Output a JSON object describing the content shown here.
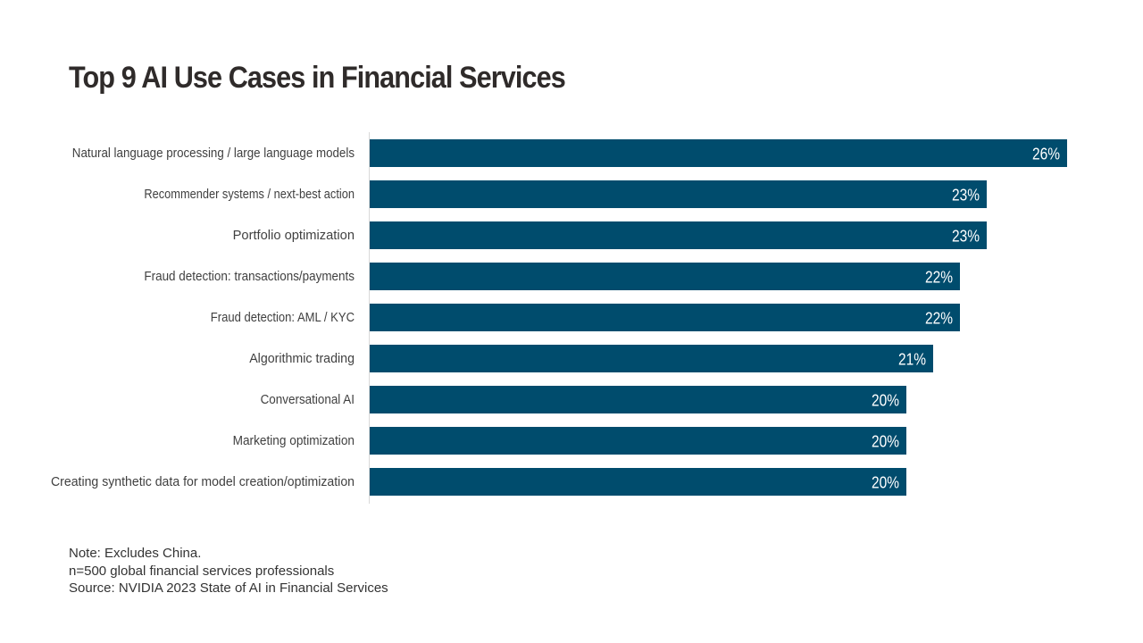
{
  "chart_data": {
    "type": "bar",
    "orientation": "horizontal",
    "title": "Top 9 AI Use Cases in Financial Services",
    "categories": [
      "Natural language processing / large language models",
      "Recommender systems / next-best action",
      "Portfolio optimization",
      "Fraud detection: transactions/payments",
      "Fraud detection: AML / KYC",
      "Algorithmic trading",
      "Conversational AI",
      "Marketing optimization",
      "Creating synthetic data for model creation/optimization"
    ],
    "values": [
      26,
      23,
      23,
      22,
      22,
      21,
      20,
      20,
      20
    ],
    "data_labels": [
      "26%",
      "23%",
      "23%",
      "22%",
      "22%",
      "21%",
      "20%",
      "20%",
      "20%"
    ],
    "unit": "%",
    "xlim": [
      0,
      26
    ],
    "xlabel": "",
    "ylabel": "",
    "grid": false,
    "legend": "none",
    "bar_color": "#004c6d"
  },
  "notes": {
    "note": "Note: Excludes China.",
    "sample": "n=500 global financial services professionals",
    "source": "Source: NVIDIA 2023 State of AI in Financial Services"
  },
  "colors": {
    "bar": "#004c6d",
    "title": "#2f2b2a",
    "category_label": "#404040",
    "value_label": "#ffffff",
    "axis_line": "#d9d9d9"
  }
}
